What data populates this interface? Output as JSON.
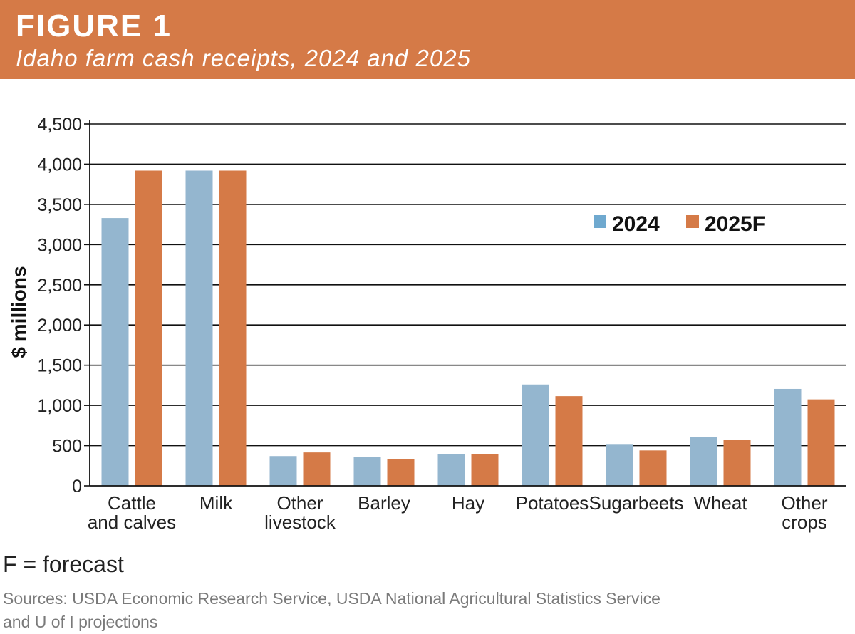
{
  "header": {
    "label": "FIGURE 1",
    "subtitle": "Idaho farm cash receipts, 2024 and 2025"
  },
  "colors": {
    "header_bg": "#d57a47",
    "series_2024": "#94b6cf",
    "series_2025F": "#d57a47",
    "legend_2024_swatch": "#6fa9cf"
  },
  "chart_data": {
    "type": "bar",
    "categories": [
      [
        "Cattle",
        "and calves"
      ],
      [
        "Milk"
      ],
      [
        "Other",
        "livestock"
      ],
      [
        "Barley"
      ],
      [
        "Hay"
      ],
      [
        "Potatoes"
      ],
      [
        "Sugarbeets"
      ],
      [
        "Wheat"
      ],
      [
        "Other",
        "crops"
      ]
    ],
    "series": [
      {
        "name": "2024",
        "values": [
          3330,
          3920,
          370,
          355,
          390,
          1260,
          520,
          605,
          1205
        ]
      },
      {
        "name": "2025F",
        "values": [
          3920,
          3920,
          415,
          330,
          390,
          1115,
          440,
          575,
          1075
        ]
      }
    ],
    "ylabel": "$ millions",
    "ylim": [
      0,
      4500
    ],
    "yticks": [
      "0",
      "500",
      "1,000",
      "1,500",
      "2,000",
      "2,500",
      "3,000",
      "3,500",
      "4,000",
      "4,500"
    ],
    "grid": true,
    "legend_position": "top-right"
  },
  "footnote": "F = forecast",
  "sources": {
    "line1": "Sources: USDA Economic Research Service, USDA National Agricultural Statistics Service",
    "line2": "and U of I projections"
  }
}
